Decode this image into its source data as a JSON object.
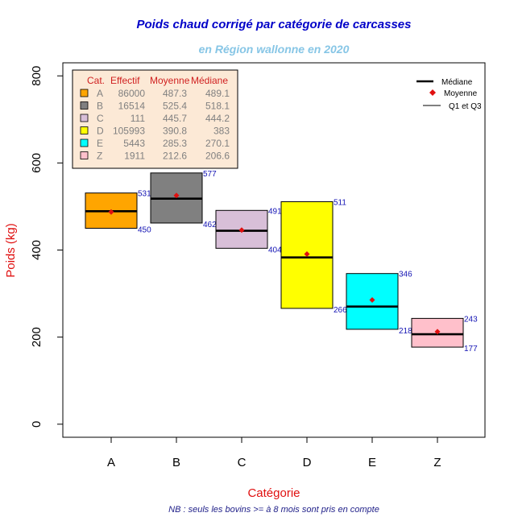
{
  "colors": {
    "title": "#0000c8",
    "subtitle": "#87c6e6",
    "axis_title": "#e01010",
    "note": "#22228a",
    "value_label": "#1414b4",
    "mean": "#e01010",
    "legend_header": "#d02020",
    "legend_text": "#808080",
    "legend_bg": "#fce9d6"
  },
  "chart_data": {
    "type": "box",
    "title": "Poids chaud corrigé par catégorie de carcasses",
    "subtitle": "en Région wallonne en 2020",
    "xlabel": "Catégorie",
    "ylabel": "Poids (kg)",
    "note": "NB : seuls les bovins >= à 8 mois sont pris en compte",
    "ylim": [
      -30,
      830
    ],
    "yticks": [
      0,
      200,
      400,
      600,
      800
    ],
    "categories": [
      "A",
      "B",
      "C",
      "D",
      "E",
      "Z"
    ],
    "series": [
      {
        "category": "A",
        "color": "#ffa500",
        "effectif": "86000",
        "moyenne": "487.3",
        "mediane": "489.1",
        "mean": 487.3,
        "median": 489.1,
        "q1": 450,
        "q3": 531,
        "q1_label": "450",
        "q3_label": "531"
      },
      {
        "category": "B",
        "color": "#808080",
        "effectif": "16514",
        "moyenne": "525.4",
        "mediane": "518.1",
        "mean": 525.4,
        "median": 518.1,
        "q1": 462,
        "q3": 577,
        "q1_label": "462",
        "q3_label": "577"
      },
      {
        "category": "C",
        "color": "#d8bfd8",
        "effectif": "111",
        "moyenne": "445.7",
        "mediane": "444.2",
        "mean": 445.7,
        "median": 444.2,
        "q1": 404,
        "q3": 491,
        "q1_label": "404",
        "q3_label": "491"
      },
      {
        "category": "D",
        "color": "#ffff00",
        "effectif": "105993",
        "moyenne": "390.8",
        "mediane": "383",
        "mean": 390.8,
        "median": 383,
        "q1": 266,
        "q3": 511,
        "q1_label": "266",
        "q3_label": "511"
      },
      {
        "category": "E",
        "color": "#00ffff",
        "effectif": "5443",
        "moyenne": "285.3",
        "mediane": "270.1",
        "mean": 285.3,
        "median": 270.1,
        "q1": 218,
        "q3": 346,
        "q1_label": "218",
        "q3_label": "346"
      },
      {
        "category": "Z",
        "color": "#ffc0cb",
        "effectif": "1911",
        "moyenne": "212.6",
        "mediane": "206.6",
        "mean": 212.6,
        "median": 206.6,
        "q1": 177,
        "q3": 243,
        "q1_label": "177",
        "q3_label": "243"
      }
    ],
    "table_headers": [
      "Cat.",
      "Effectif",
      "Moyenne",
      "Médiane"
    ],
    "legend": {
      "placement": "top-right",
      "entries": [
        "Médiane",
        "Moyenne",
        "Q1 et Q3"
      ]
    }
  }
}
